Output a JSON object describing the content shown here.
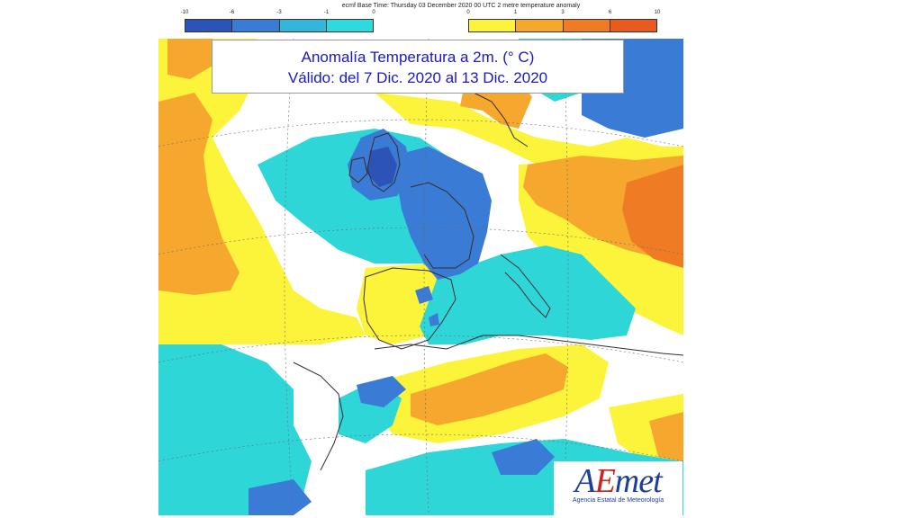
{
  "header": {
    "caption": "ecmf  Base Time: Thursday 03 December 2020 00 UTC 2 metre temperature anomaly"
  },
  "legend": {
    "cold": {
      "ticks": [
        "-10",
        "-6",
        "-3",
        "-1",
        "0"
      ],
      "colors": [
        "#2c54b8",
        "#3a7bd6",
        "#32b6da",
        "#2fdadc"
      ]
    },
    "warm": {
      "ticks": [
        "0",
        "1",
        "3",
        "6",
        "10"
      ],
      "colors": [
        "#fbf43a",
        "#f6a72e",
        "#ef7c25",
        "#e85a1e"
      ]
    }
  },
  "title": {
    "line1": "Anomalía Temperatura a 2m. (° C)",
    "line2": "Válido: del 7 Dic. 2020 al 13 Dic. 2020"
  },
  "map_colors": {
    "neutral": "#ffffff",
    "cold_light": "#2fd6d8",
    "cold_medium": "#3a7bd6",
    "cold_strong": "#2c54b8",
    "warm_light": "#fbf43a",
    "warm_medium": "#f6a72e",
    "warm_strong": "#ef7c25",
    "coastline": "#3a2a2a"
  },
  "logo": {
    "brand_a": "A",
    "brand_e": "E",
    "brand_rest": "met",
    "subtitle": "Agencia Estatal de Meteorología"
  }
}
